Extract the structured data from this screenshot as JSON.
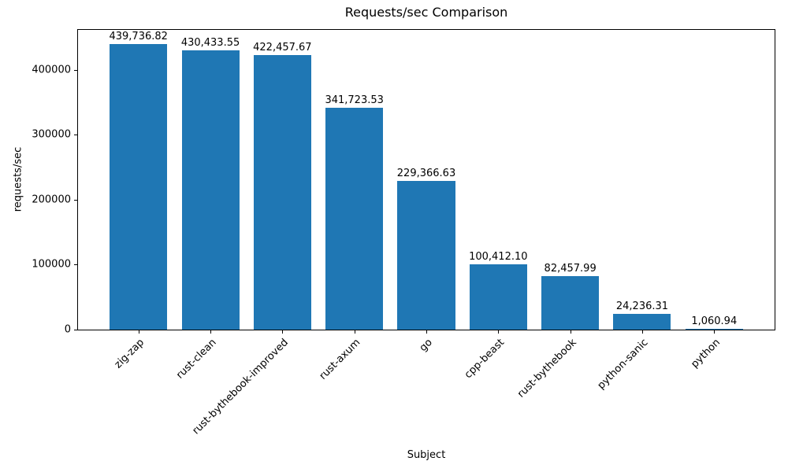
{
  "chart_data": {
    "type": "bar",
    "title": "Requests/sec Comparison",
    "xlabel": "Subject",
    "ylabel": "requests/sec",
    "categories": [
      "zig-zap",
      "rust-clean",
      "rust-bythebook-improved",
      "rust-axum",
      "go",
      "cpp-beast",
      "rust-bythebook",
      "python-sanic",
      "python"
    ],
    "values": [
      439736.82,
      430433.55,
      422457.67,
      341723.53,
      229366.63,
      100412.1,
      82457.99,
      24236.31,
      1060.94
    ],
    "value_labels": [
      "439,736.82",
      "430,433.55",
      "422,457.67",
      "341,723.53",
      "229,366.63",
      "100,412.10",
      "82,457.99",
      "24,236.31",
      "1,060.94"
    ],
    "ylim": [
      0,
      461723.66
    ],
    "yticks": [
      0,
      100000,
      200000,
      300000,
      400000
    ],
    "ytick_labels": [
      "0",
      "100000",
      "200000",
      "300000",
      "400000"
    ],
    "bar_color": "#1f77b4",
    "spine_color": "#000000",
    "x_tick_rotation": 45,
    "grid": false,
    "legend_position": "none"
  }
}
